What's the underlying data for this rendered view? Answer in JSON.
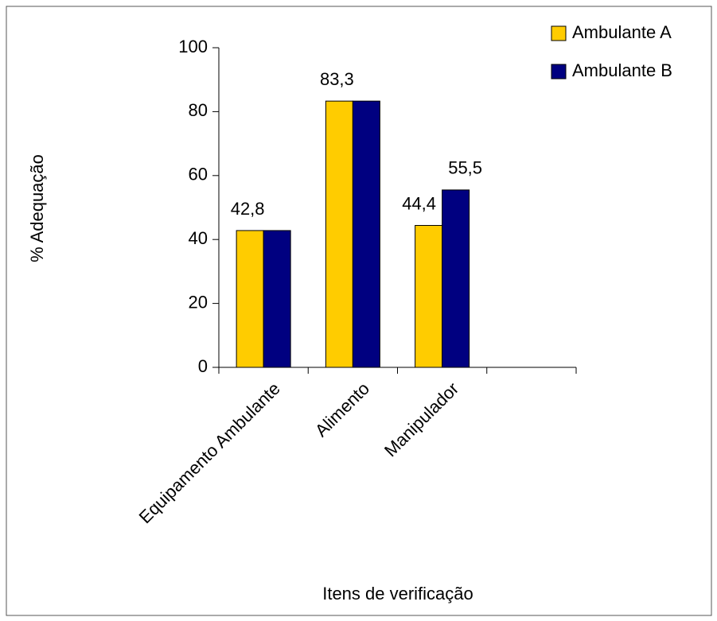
{
  "chart_data": {
    "type": "bar",
    "categories": [
      "Equipamento Ambulante",
      "Alimento",
      "Manipulador",
      null
    ],
    "series": [
      {
        "name": "Ambulante A",
        "color": "#ffcc00",
        "values": [
          42.8,
          83.3,
          44.4,
          null
        ],
        "value_labels": [
          "42,8",
          "83,3",
          "44,4",
          null
        ]
      },
      {
        "name": "Ambulante B",
        "color": "#000080",
        "values": [
          42.8,
          83.3,
          55.5,
          null
        ],
        "value_labels": [
          null,
          null,
          "55,5",
          null
        ]
      }
    ],
    "ylabel": "% Adequação",
    "xlabel": "Itens de verificação",
    "ylim": [
      0,
      100
    ],
    "yticks": [
      0,
      20,
      40,
      60,
      80,
      100
    ],
    "grid": false,
    "legend": "top-right"
  }
}
